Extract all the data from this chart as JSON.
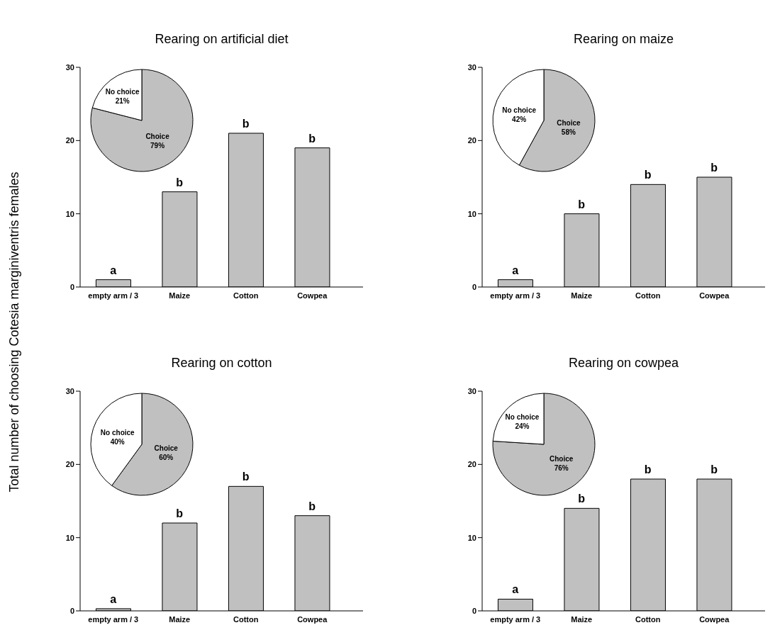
{
  "chart_data": [
    {
      "type": "bar",
      "title": "Rearing on artificial diet",
      "ylabel": "Total number of choosing Cotesia marginiventris females",
      "categories": [
        "empty arm / 3",
        "Maize",
        "Cotton",
        "Cowpea"
      ],
      "values": [
        1,
        13,
        21,
        19
      ],
      "color": "#c0c0c0",
      "ylim": [
        0,
        30
      ],
      "yticks": [
        0,
        10,
        20,
        30
      ],
      "annotations": [
        {
          "text": "a",
          "x": "empty arm / 3",
          "y": 1
        },
        {
          "text": "b",
          "x": "Maize",
          "y": 13
        },
        {
          "text": "b",
          "x": "Cotton",
          "y": 21
        },
        {
          "text": "b",
          "x": "Cowpea",
          "y": 19
        }
      ]
    },
    {
      "type": "pie",
      "categories": [
        "Choice",
        "No choice"
      ],
      "values": [
        79,
        21
      ],
      "colors": [
        "#c0c0c0",
        "#ffffff"
      ],
      "value_labels": [
        "79%",
        "21%"
      ]
    },
    {
      "type": "bar",
      "title": "Rearing on maize",
      "categories": [
        "empty arm / 3",
        "Maize",
        "Cotton",
        "Cowpea"
      ],
      "values": [
        1,
        10,
        14,
        15
      ],
      "color": "#c0c0c0",
      "ylim": [
        0,
        30
      ],
      "yticks": [
        0,
        10,
        20,
        30
      ],
      "annotations": [
        {
          "text": "a",
          "x": "empty arm / 3",
          "y": 1
        },
        {
          "text": "b",
          "x": "Maize",
          "y": 10
        },
        {
          "text": "b",
          "x": "Cotton",
          "y": 14
        },
        {
          "text": "b",
          "x": "Cowpea",
          "y": 15
        }
      ]
    },
    {
      "type": "pie",
      "categories": [
        "Choice",
        "No choice"
      ],
      "values": [
        58,
        42
      ],
      "colors": [
        "#c0c0c0",
        "#ffffff"
      ],
      "value_labels": [
        "58%",
        "42%"
      ]
    },
    {
      "type": "bar",
      "title": "Rearing on cotton",
      "categories": [
        "empty arm / 3",
        "Maize",
        "Cotton",
        "Cowpea"
      ],
      "values": [
        0.3,
        12,
        17,
        13
      ],
      "color": "#c0c0c0",
      "ylim": [
        0,
        30
      ],
      "yticks": [
        0,
        10,
        20,
        30
      ],
      "annotations": [
        {
          "text": "a",
          "x": "empty arm / 3",
          "y": 0.3
        },
        {
          "text": "b",
          "x": "Maize",
          "y": 12
        },
        {
          "text": "b",
          "x": "Cotton",
          "y": 17
        },
        {
          "text": "b",
          "x": "Cowpea",
          "y": 13
        }
      ]
    },
    {
      "type": "pie",
      "categories": [
        "Choice",
        "No choice"
      ],
      "values": [
        60,
        40
      ],
      "colors": [
        "#c0c0c0",
        "#ffffff"
      ],
      "value_labels": [
        "60%",
        "40%"
      ]
    },
    {
      "type": "bar",
      "title": "Rearing on cowpea",
      "categories": [
        "empty arm / 3",
        "Maize",
        "Cotton",
        "Cowpea"
      ],
      "values": [
        1.6,
        14,
        18,
        18
      ],
      "color": "#c0c0c0",
      "ylim": [
        0,
        30
      ],
      "yticks": [
        0,
        10,
        20,
        30
      ],
      "annotations": [
        {
          "text": "a",
          "x": "empty arm / 3",
          "y": 1.6
        },
        {
          "text": "b",
          "x": "Maize",
          "y": 14
        },
        {
          "text": "b",
          "x": "Cotton",
          "y": 18
        },
        {
          "text": "b",
          "x": "Cowpea",
          "y": 18
        }
      ]
    },
    {
      "type": "pie",
      "categories": [
        "Choice",
        "No choice"
      ],
      "values": [
        76,
        24
      ],
      "colors": [
        "#c0c0c0",
        "#ffffff"
      ],
      "value_labels": [
        "76%",
        "24%"
      ]
    }
  ]
}
